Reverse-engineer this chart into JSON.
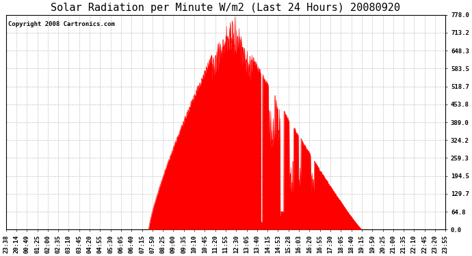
{
  "title": "Solar Radiation per Minute W/m2 (Last 24 Hours) 20080920",
  "copyright": "Copyright 2008 Cartronics.com",
  "fill_color": "#FF0000",
  "background_color": "#FFFFFF",
  "plot_bg_color": "#FFFFFF",
  "grid_color": "#C0C0C0",
  "dashed_line_color": "#FF0000",
  "yticks": [
    0.0,
    64.8,
    129.7,
    194.5,
    259.3,
    324.2,
    389.0,
    453.8,
    518.7,
    583.5,
    648.3,
    713.2,
    778.0
  ],
  "ymax": 778.0,
  "ymin": 0.0,
  "title_fontsize": 11,
  "copyright_fontsize": 6.5,
  "tick_label_fontsize": 6.5,
  "x_tick_labels": [
    "23:38",
    "20:14",
    "00:49",
    "01:25",
    "02:00",
    "02:35",
    "03:10",
    "03:45",
    "04:20",
    "04:55",
    "05:30",
    "06:05",
    "06:40",
    "07:15",
    "07:50",
    "08:25",
    "09:00",
    "09:35",
    "10:10",
    "10:45",
    "11:20",
    "11:55",
    "12:30",
    "13:05",
    "13:40",
    "14:15",
    "14:53",
    "15:28",
    "16:03",
    "16:20",
    "16:55",
    "17:30",
    "18:05",
    "18:40",
    "19:15",
    "19:50",
    "20:25",
    "21:00",
    "21:35",
    "22:10",
    "22:45",
    "23:20",
    "23:55"
  ],
  "sunrise_idx": 467,
  "sunset_idx": 1165,
  "peak_idx": 755,
  "peak_val": 778.0,
  "n_points": 1440
}
